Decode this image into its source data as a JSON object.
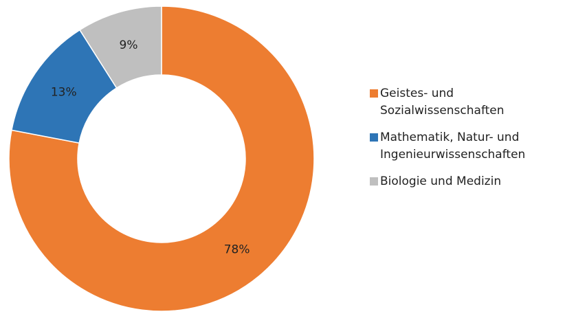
{
  "chart_data": {
    "type": "donut",
    "categories": [
      "Geistes- und Sozialwissenschaften",
      "Mathematik, Natur- und Ingenieurwissenschaften",
      "Biologie und Medizin"
    ],
    "values": [
      78,
      13,
      9
    ],
    "value_labels": [
      "78%",
      "13%",
      "9%"
    ],
    "colors": [
      "#ed7d31",
      "#2e75b6",
      "#bfbfbf"
    ],
    "legend": "right"
  }
}
